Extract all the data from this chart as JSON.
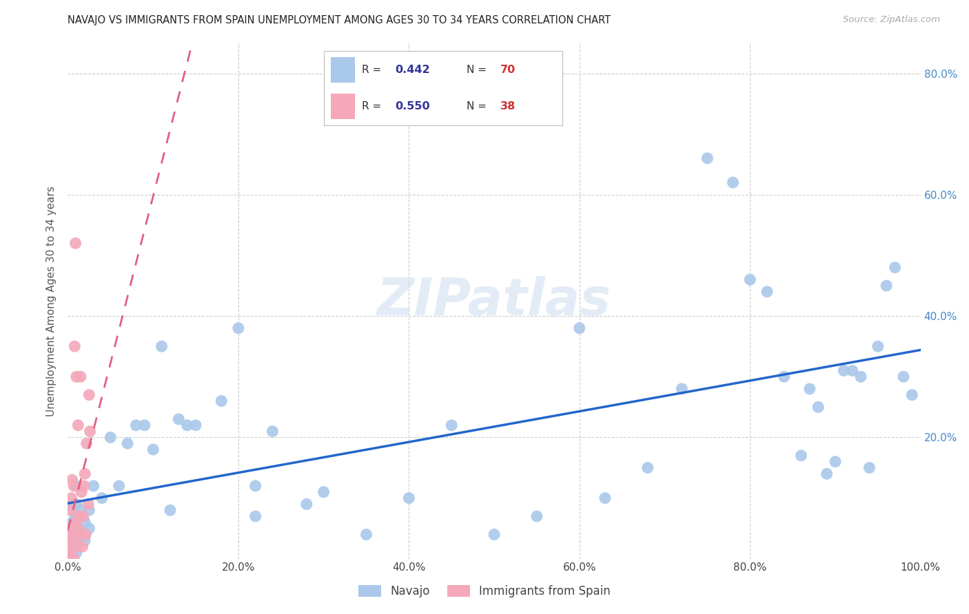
{
  "title": "NAVAJO VS IMMIGRANTS FROM SPAIN UNEMPLOYMENT AMONG AGES 30 TO 34 YEARS CORRELATION CHART",
  "source": "Source: ZipAtlas.com",
  "ylabel": "Unemployment Among Ages 30 to 34 years",
  "xlim": [
    0,
    1.0
  ],
  "ylim": [
    0,
    0.85
  ],
  "xticks": [
    0.0,
    0.2,
    0.4,
    0.6,
    0.8,
    1.0
  ],
  "xtick_labels": [
    "0.0%",
    "20.0%",
    "40.0%",
    "60.0%",
    "80.0%",
    "100.0%"
  ],
  "ytick_vals": [
    0.2,
    0.4,
    0.6,
    0.8
  ],
  "ytick_labels_right": [
    "20.0%",
    "40.0%",
    "60.0%",
    "80.0%"
  ],
  "navajo_R": "0.442",
  "navajo_N": "70",
  "spain_R": "0.550",
  "spain_N": "38",
  "navajo_color": "#aac8ea",
  "spain_color": "#f4a8ba",
  "navajo_line_color": "#2266cc",
  "spain_line_color": "#e06080",
  "legend_text_color": "#333399",
  "legend_N_color": "#cc3333",
  "watermark_text": "ZIPatlas",
  "navajo_label": "Navajo",
  "spain_label": "Immigrants from Spain",
  "navajo_x": [
    0.005,
    0.005,
    0.005,
    0.007,
    0.007,
    0.007,
    0.008,
    0.008,
    0.009,
    0.01,
    0.01,
    0.01,
    0.01,
    0.01,
    0.01,
    0.01,
    0.015,
    0.015,
    0.02,
    0.02,
    0.025,
    0.025,
    0.03,
    0.04,
    0.05,
    0.06,
    0.07,
    0.08,
    0.09,
    0.1,
    0.11,
    0.12,
    0.13,
    0.14,
    0.15,
    0.18,
    0.2,
    0.22,
    0.22,
    0.24,
    0.28,
    0.3,
    0.35,
    0.4,
    0.45,
    0.5,
    0.55,
    0.6,
    0.63,
    0.68,
    0.72,
    0.75,
    0.78,
    0.8,
    0.82,
    0.84,
    0.86,
    0.87,
    0.88,
    0.89,
    0.9,
    0.91,
    0.92,
    0.93,
    0.94,
    0.95,
    0.96,
    0.97,
    0.98,
    0.99
  ],
  "navajo_y": [
    0.04,
    0.06,
    0.09,
    0.03,
    0.05,
    0.08,
    0.02,
    0.04,
    0.07,
    0.01,
    0.02,
    0.03,
    0.05,
    0.07,
    0.09,
    0.12,
    0.04,
    0.08,
    0.03,
    0.06,
    0.05,
    0.08,
    0.12,
    0.1,
    0.2,
    0.12,
    0.19,
    0.22,
    0.22,
    0.18,
    0.35,
    0.08,
    0.23,
    0.22,
    0.22,
    0.26,
    0.38,
    0.07,
    0.12,
    0.21,
    0.09,
    0.11,
    0.04,
    0.1,
    0.22,
    0.04,
    0.07,
    0.38,
    0.1,
    0.15,
    0.28,
    0.66,
    0.62,
    0.46,
    0.44,
    0.3,
    0.17,
    0.28,
    0.25,
    0.14,
    0.16,
    0.31,
    0.31,
    0.3,
    0.15,
    0.35,
    0.45,
    0.48,
    0.3,
    0.27
  ],
  "spain_x": [
    0.0,
    0.0,
    0.0,
    0.001,
    0.001,
    0.001,
    0.002,
    0.002,
    0.003,
    0.003,
    0.004,
    0.004,
    0.005,
    0.005,
    0.006,
    0.007,
    0.007,
    0.008,
    0.008,
    0.009,
    0.009,
    0.01,
    0.01,
    0.012,
    0.012,
    0.013,
    0.015,
    0.015,
    0.016,
    0.017,
    0.018,
    0.019,
    0.02,
    0.021,
    0.022,
    0.024,
    0.025,
    0.026
  ],
  "spain_y": [
    0.0,
    0.01,
    0.02,
    0.0,
    0.02,
    0.04,
    0.01,
    0.05,
    0.01,
    0.08,
    0.02,
    0.1,
    0.0,
    0.13,
    0.03,
    0.0,
    0.12,
    0.04,
    0.35,
    0.06,
    0.52,
    0.02,
    0.3,
    0.05,
    0.22,
    0.07,
    0.04,
    0.3,
    0.11,
    0.02,
    0.07,
    0.12,
    0.14,
    0.04,
    0.19,
    0.09,
    0.27,
    0.21
  ]
}
